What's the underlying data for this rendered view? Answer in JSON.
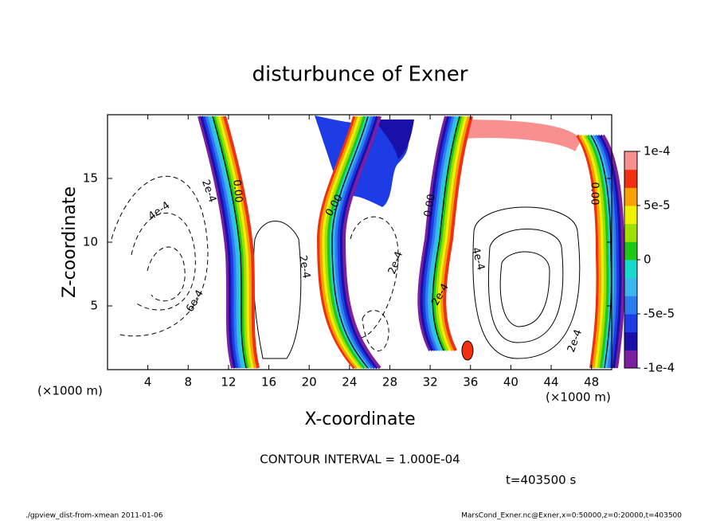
{
  "chart_data": {
    "type": "contour",
    "title": "disturbunce of Exner",
    "x_label": "X-coordinate",
    "y_label": "Z-coordinate",
    "x_unit": "(×1000 m)",
    "y_unit": "(×1000 m)",
    "xlim": [
      0,
      50
    ],
    "xticks": [
      4,
      8,
      12,
      16,
      20,
      24,
      28,
      32,
      36,
      40,
      44,
      48
    ],
    "ylim": [
      0,
      20
    ],
    "yticks": [
      5,
      10,
      15
    ],
    "colorbar": {
      "lim": [
        -0.0001,
        0.0001
      ],
      "ticks": [
        {
          "value": 0.0001,
          "label": "1e-4"
        },
        {
          "value": 5e-05,
          "label": "5e-5"
        },
        0,
        {
          "value": -5e-05,
          "label": "-5e-5"
        },
        {
          "value": -0.0001,
          "label": "-1e-4"
        }
      ],
      "colors": [
        "#7a1fa0",
        "#1a0fa8",
        "#1e3ce6",
        "#2c7cf0",
        "#3cb4f0",
        "#18d8d0",
        "#1ec814",
        "#a0e000",
        "#f0f000",
        "#f8a000",
        "#f03010",
        "#f89090"
      ]
    },
    "contour_labels": [
      "2e-4",
      "0.00",
      "4e-4",
      "6e-4",
      "2e-4",
      "0.00",
      "2e-4",
      "0.00",
      "4e-4",
      "2e-4",
      "2e-4",
      "0.00"
    ],
    "contour_interval": "CONTOUR INTERVAL = 1.000E-04",
    "time": "t=403500 s",
    "footer_left": "./gpview_dist-from-xmean  2011-01-06",
    "footer_right": "MarsCond_Exner.nc@Exner,x=0:50000,z=0:20000,t=403500"
  }
}
